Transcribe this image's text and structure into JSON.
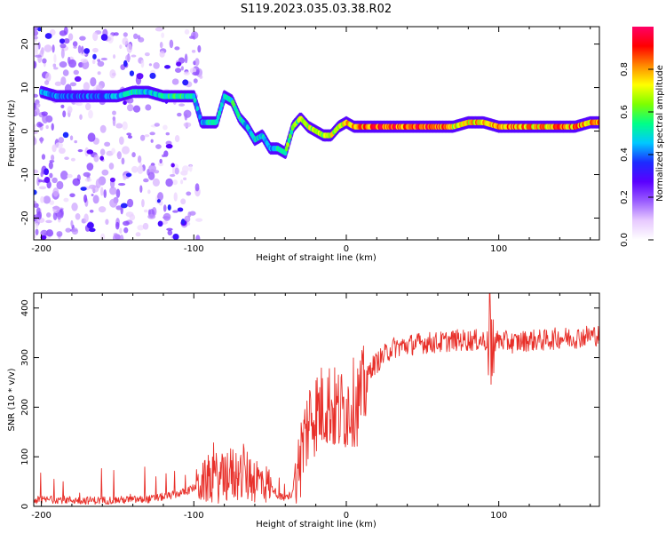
{
  "title": "S119.2023.035.03.38.R02",
  "chart_data": [
    {
      "type": "heatmap",
      "xlabel": "Height of straight line (km)",
      "ylabel": "Frequency (Hz)",
      "xlim": [
        -205,
        166
      ],
      "ylim": [
        -25,
        24
      ],
      "x_ticks": [
        -200,
        -100,
        0,
        100
      ],
      "y_ticks": [
        20,
        10,
        0,
        -10,
        -20
      ],
      "colorbar": {
        "label": "Normalized spectral amplitude",
        "range": [
          0,
          1
        ],
        "ticks": [
          0.0,
          0.2,
          0.4,
          0.6,
          0.8
        ],
        "tick_labels": [
          "0.0",
          "0.2",
          "0.4",
          "0.6",
          "0.8"
        ],
        "colors": [
          "#ffffff",
          "#e7c9ff",
          "#9a5cff",
          "#5a00ff",
          "#1c2cff",
          "#00c8ff",
          "#00ff88",
          "#7dff00",
          "#ffff00",
          "#ff8800",
          "#ff0000",
          "#ff0066"
        ]
      },
      "ridge": {
        "x": [
          -200,
          -190,
          -180,
          -170,
          -160,
          -150,
          -140,
          -130,
          -120,
          -110,
          -100,
          -95,
          -90,
          -85,
          -80,
          -75,
          -70,
          -65,
          -60,
          -55,
          -50,
          -45,
          -40,
          -35,
          -30,
          -25,
          -20,
          -15,
          -10,
          -5,
          0,
          5,
          10,
          20,
          30,
          40,
          50,
          60,
          70,
          80,
          90,
          100,
          110,
          120,
          130,
          140,
          150,
          160,
          166
        ],
        "y": [
          9,
          8,
          8,
          8,
          8,
          8,
          9,
          9,
          8,
          8,
          8,
          2,
          2,
          2,
          8,
          7,
          3,
          1,
          -2,
          -1,
          -4,
          -4,
          -5,
          1,
          3,
          1,
          0,
          -1,
          -1,
          1,
          2,
          1,
          1,
          1,
          1,
          1,
          1,
          1,
          1,
          2,
          2,
          1,
          1,
          1,
          1,
          1,
          1,
          2,
          2
        ],
        "amp": [
          0.45,
          0.45,
          0.4,
          0.42,
          0.4,
          0.5,
          0.55,
          0.5,
          0.55,
          0.6,
          0.5,
          0.45,
          0.55,
          0.5,
          0.5,
          0.6,
          0.55,
          0.5,
          0.55,
          0.5,
          0.45,
          0.6,
          0.65,
          0.65,
          0.7,
          0.75,
          0.75,
          0.7,
          0.75,
          0.8,
          0.8,
          0.85,
          0.9,
          0.95,
          0.95,
          0.95,
          0.95,
          0.95,
          0.8,
          0.8,
          0.85,
          0.9,
          0.9,
          0.85,
          0.85,
          0.9,
          0.9,
          0.85,
          0.85
        ]
      }
    },
    {
      "type": "line",
      "xlabel": "Height of straight line (km)",
      "ylabel": "SNR (10 * v/v)",
      "xlim": [
        -205,
        166
      ],
      "ylim": [
        0,
        430
      ],
      "x_ticks": [
        -200,
        -100,
        0,
        100
      ],
      "y_ticks": [
        0,
        100,
        200,
        300,
        400
      ],
      "color": "#e8302a",
      "series": [
        {
          "name": "SNR",
          "x": [
            -205,
            -190,
            -175,
            -160,
            -145,
            -130,
            -115,
            -105,
            -95,
            -88,
            -82,
            -75,
            -68,
            -62,
            -56,
            -50,
            -44,
            -40,
            -36,
            -32,
            -28,
            -24,
            -20,
            -16,
            -12,
            -8,
            -4,
            0,
            4,
            8,
            12,
            16,
            20,
            25,
            30,
            40,
            50,
            60,
            70,
            80,
            90,
            95,
            100,
            110,
            120,
            130,
            140,
            150,
            160,
            166
          ],
          "y": [
            12,
            14,
            12,
            12,
            13,
            14,
            22,
            30,
            45,
            60,
            55,
            65,
            62,
            60,
            50,
            42,
            20,
            15,
            25,
            70,
            130,
            180,
            190,
            200,
            210,
            195,
            190,
            200,
            210,
            210,
            240,
            280,
            290,
            305,
            320,
            325,
            330,
            330,
            335,
            335,
            335,
            330,
            335,
            330,
            335,
            335,
            340,
            340,
            345,
            345
          ]
        }
      ]
    }
  ]
}
